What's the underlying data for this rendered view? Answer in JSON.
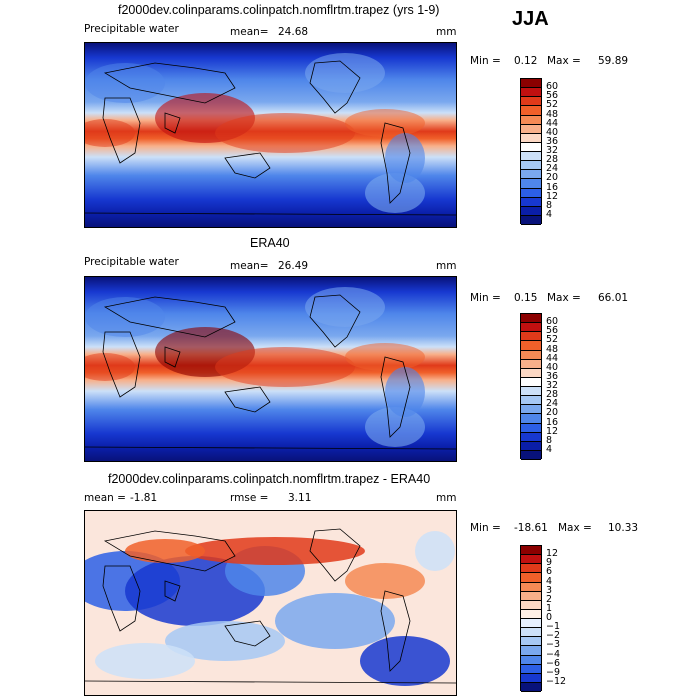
{
  "season": "JJA",
  "panels": [
    {
      "title": "f2000dev.colinparams.colinpatch.nomflrtm.trapez (yrs 1-9)",
      "variable": "Precipitable water",
      "stat1_label": "mean=",
      "stat1_value": "24.68",
      "stat2_label": "",
      "stat2_value": "",
      "units": "mm",
      "min_label": "Min =",
      "min_value": "0.12",
      "max_label": "Max =",
      "max_value": "59.89",
      "colorbar_levels": [
        "60",
        "56",
        "52",
        "48",
        "44",
        "40",
        "36",
        "32",
        "28",
        "24",
        "20",
        "16",
        "12",
        "8",
        "4"
      ],
      "colorbar_colors": [
        "#8b0000",
        "#c01010",
        "#e03a1a",
        "#f0602a",
        "#f58a55",
        "#f8b08a",
        "#fcd8c4",
        "#ffffff",
        "#cce0f8",
        "#a6c8f4",
        "#7aa8ee",
        "#4f86ea",
        "#2c5fe6",
        "#1738d0",
        "#0a1ea8",
        "#08127a"
      ],
      "map_style": "model"
    },
    {
      "title": "ERA40",
      "variable": "Precipitable water",
      "stat1_label": "mean=",
      "stat1_value": "26.49",
      "stat2_label": "",
      "stat2_value": "",
      "units": "mm",
      "min_label": "Min =",
      "min_value": "0.15",
      "max_label": "Max =",
      "max_value": "66.01",
      "colorbar_levels": [
        "60",
        "56",
        "52",
        "48",
        "44",
        "40",
        "36",
        "32",
        "28",
        "24",
        "20",
        "16",
        "12",
        "8",
        "4"
      ],
      "colorbar_colors": [
        "#8b0000",
        "#c01010",
        "#e03a1a",
        "#f0602a",
        "#f58a55",
        "#f8b08a",
        "#fcd8c4",
        "#ffffff",
        "#cce0f8",
        "#a6c8f4",
        "#7aa8ee",
        "#4f86ea",
        "#2c5fe6",
        "#1738d0",
        "#0a1ea8",
        "#08127a"
      ],
      "map_style": "obs"
    },
    {
      "title": "f2000dev.colinparams.colinpatch.nomflrtm.trapez - ERA40",
      "variable": "",
      "stat1_label": "mean =",
      "stat1_value": "-1.81",
      "stat2_label": "rmse =",
      "stat2_value": "3.11",
      "units": "mm",
      "min_label": "Min =",
      "min_value": "-18.61",
      "max_label": "Max =",
      "max_value": "10.33",
      "colorbar_levels": [
        "12",
        "9",
        "6",
        "4",
        "3",
        "2",
        "1",
        "0",
        "−1",
        "−2",
        "−3",
        "−4",
        "−6",
        "−9",
        "−12"
      ],
      "colorbar_colors": [
        "#8b0000",
        "#c01010",
        "#e03a1a",
        "#f0602a",
        "#f58a55",
        "#f8b08a",
        "#fcd8c4",
        "#fff0e6",
        "#e6f0ff",
        "#cce0f8",
        "#a6c8f4",
        "#7aa8ee",
        "#4f86ea",
        "#2c5fe6",
        "#1738d0",
        "#08127a"
      ],
      "map_style": "diff"
    }
  ],
  "chart_data": [
    {
      "type": "heatmap",
      "title": "f2000dev.colinparams.colinpatch.nomflrtm.trapez (yrs 1-9)",
      "variable": "Precipitable water",
      "units": "mm",
      "mean": 24.68,
      "min": 0.12,
      "max": 59.89,
      "levels": [
        4,
        8,
        12,
        16,
        20,
        24,
        28,
        32,
        36,
        40,
        44,
        48,
        52,
        56,
        60
      ]
    },
    {
      "type": "heatmap",
      "title": "ERA40",
      "variable": "Precipitable water",
      "units": "mm",
      "mean": 26.49,
      "min": 0.15,
      "max": 66.01,
      "levels": [
        4,
        8,
        12,
        16,
        20,
        24,
        28,
        32,
        36,
        40,
        44,
        48,
        52,
        56,
        60
      ]
    },
    {
      "type": "heatmap",
      "title": "f2000dev.colinparams.colinpatch.nomflrtm.trapez - ERA40",
      "units": "mm",
      "mean": -1.81,
      "rmse": 3.11,
      "min": -18.61,
      "max": 10.33,
      "levels": [
        -12,
        -9,
        -6,
        -4,
        -3,
        -2,
        -1,
        0,
        1,
        2,
        3,
        4,
        6,
        9,
        12
      ]
    }
  ]
}
